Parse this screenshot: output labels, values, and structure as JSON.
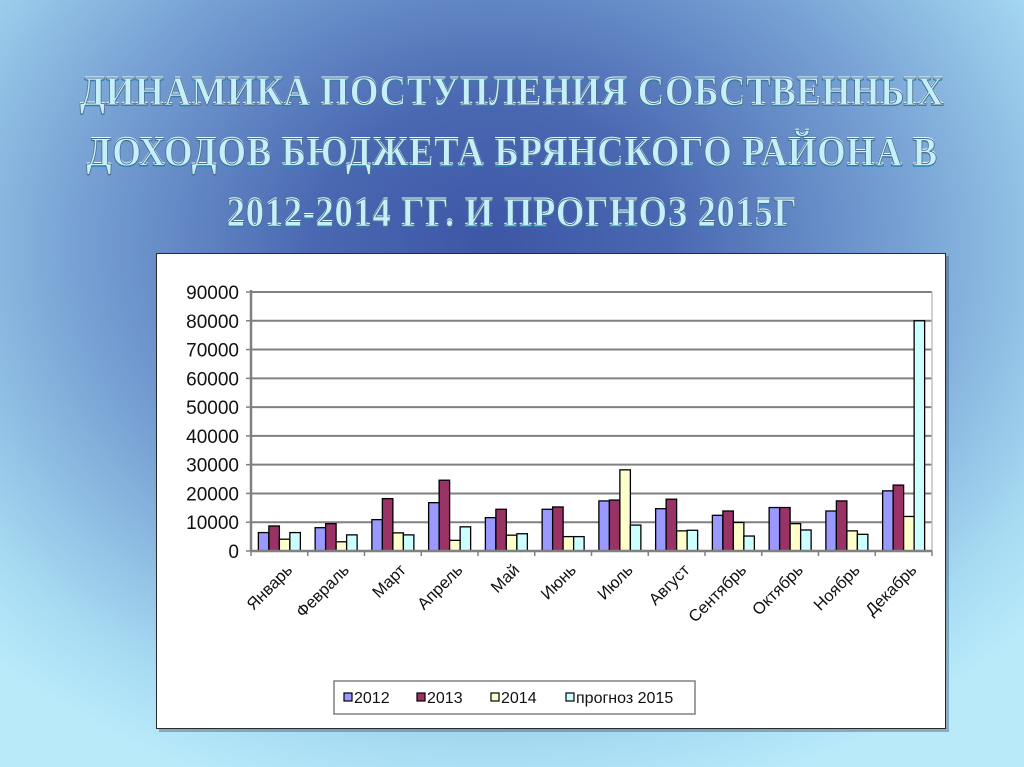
{
  "slide": {
    "title_lines": [
      "ДИНАМИКА ПОСТУПЛЕНИЯ СОБСТВЕННЫХ",
      "ДОХОДОВ БЮДЖЕТА БРЯНСКОГО РАЙОНА В",
      "2012-2014 ГГ. И ПРОГНОЗ 2015Г"
    ],
    "background_colors": {
      "center": "#3d56a6",
      "edge": "#b8eafa"
    }
  },
  "chart_data": {
    "type": "bar",
    "title": "ДИНАМИКА ПОСТУПЛЕНИЯ СОБСТВЕННЫХ ДОХОДОВ БЮДЖЕТА БРЯНСКОГО РАЙОНА В 2012-2014 ГГ. И ПРОГНОЗ 2015Г",
    "xlabel": "",
    "ylabel": "",
    "ylim": [
      0,
      90000
    ],
    "yticks": [
      0,
      10000,
      20000,
      30000,
      40000,
      50000,
      60000,
      70000,
      80000,
      90000
    ],
    "ytick_labels": [
      "0",
      "10000",
      "20000",
      "30000",
      "40000",
      "50000",
      "60000",
      "70000",
      "80000",
      "90000"
    ],
    "grid": true,
    "legend_position": "bottom",
    "categories": [
      "Январь",
      "Февраль",
      "Март",
      "Апрель",
      "Май",
      "Июнь",
      "Июль",
      "Август",
      "Сентябрь",
      "Октябрь",
      "Ноябрь",
      "Декабрь"
    ],
    "series": [
      {
        "name": "2012",
        "color": "#9999ff",
        "values": [
          6400,
          8100,
          10900,
          16800,
          11600,
          14500,
          17400,
          14700,
          12400,
          15100,
          13900,
          20900
        ]
      },
      {
        "name": "2013",
        "color": "#993366",
        "values": [
          8700,
          9500,
          18200,
          24600,
          14500,
          15300,
          17700,
          18000,
          13900,
          15100,
          17400,
          22900
        ]
      },
      {
        "name": "2014",
        "color": "#ffffcc",
        "values": [
          4100,
          3200,
          6300,
          3700,
          5500,
          5000,
          28200,
          7000,
          9900,
          9500,
          7000,
          12000
        ]
      },
      {
        "name": "прогноз 2015",
        "color": "#ccffff",
        "values": [
          6400,
          5600,
          5600,
          8400,
          6000,
          5000,
          9000,
          7200,
          5200,
          7300,
          5800,
          80000
        ]
      }
    ]
  }
}
